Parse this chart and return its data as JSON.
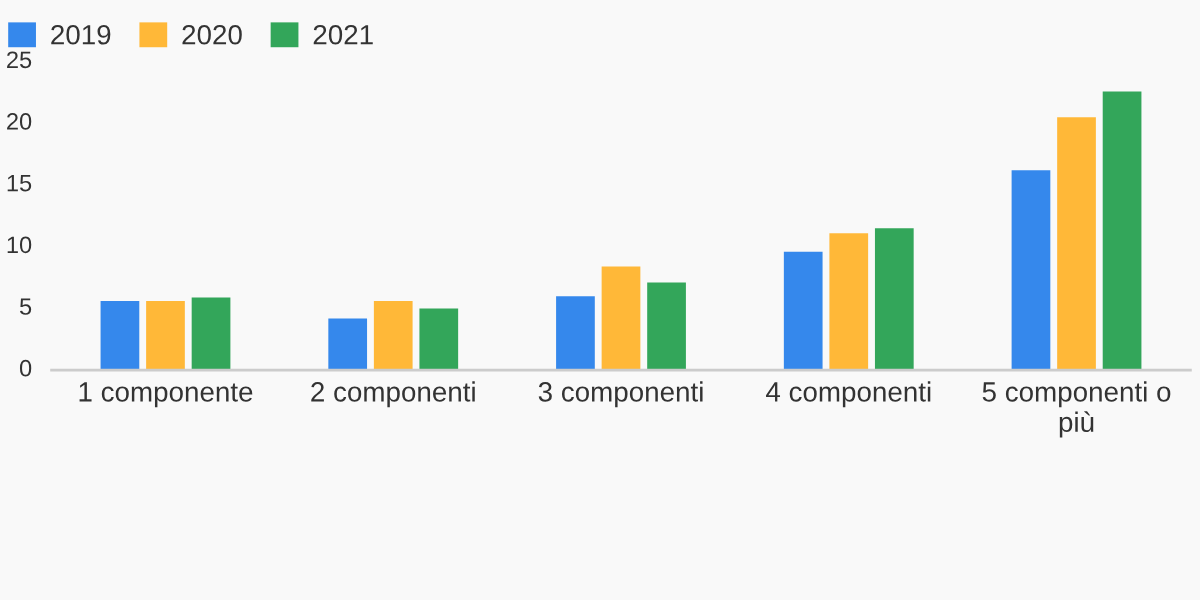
{
  "chart_data": {
    "type": "bar",
    "categories": [
      "1 componente",
      "2 componenti",
      "3 componenti",
      "4 componenti",
      "5 componenti o\npiù"
    ],
    "series": [
      {
        "name": "2019",
        "color": "#3588ec",
        "values": [
          5.6,
          4.2,
          6.0,
          9.6,
          16.2
        ]
      },
      {
        "name": "2020",
        "color": "#ffb838",
        "values": [
          5.6,
          5.6,
          8.4,
          11.1,
          20.5
        ]
      },
      {
        "name": "2021",
        "color": "#33a65a",
        "values": [
          5.9,
          5.0,
          7.1,
          11.5,
          22.6
        ]
      }
    ],
    "ylim": [
      0,
      25
    ],
    "yticks": [
      0,
      5,
      10,
      15,
      20,
      25
    ],
    "grid": false,
    "legend": "top left"
  }
}
